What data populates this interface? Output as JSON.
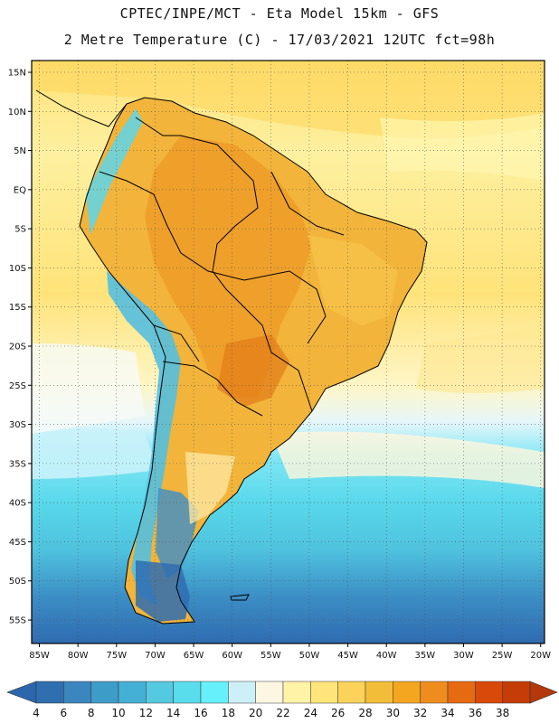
{
  "header": {
    "line1": "CPTEC/INPE/MCT -  Eta Model 15km - GFS",
    "line2": "2 Metre Temperature (C) - 17/03/2021 12UTC fct=98h"
  },
  "map": {
    "lat_labels": [
      "15N",
      "10N",
      "5N",
      "EQ",
      "5S",
      "10S",
      "15S",
      "20S",
      "25S",
      "30S",
      "35S",
      "40S",
      "45S",
      "50S",
      "55S"
    ],
    "lon_labels": [
      "85W",
      "80W",
      "75W",
      "70W",
      "65W",
      "60W",
      "55W",
      "50W",
      "45W",
      "40W",
      "35W",
      "30W",
      "25W",
      "20W"
    ],
    "lon_range": [
      -86,
      -19.5
    ],
    "lat_range": [
      -58,
      16.5
    ]
  },
  "colorbar": {
    "labels": [
      "4",
      "6",
      "8",
      "10",
      "12",
      "14",
      "16",
      "18",
      "20",
      "22",
      "24",
      "26",
      "28",
      "30",
      "32",
      "34",
      "36",
      "38"
    ],
    "colors": [
      "#2f6fb0",
      "#3b86bf",
      "#3e9cc9",
      "#45b0d6",
      "#55c9e0",
      "#59dcec",
      "#66f0fb",
      "#cdeff8",
      "#fdf7e2",
      "#fff3a8",
      "#ffe57a",
      "#fbd25a",
      "#f2bd38",
      "#f4a621",
      "#ee8d1d",
      "#e66a12",
      "#d84a0a",
      "#c63c06"
    ],
    "under_color": "#2c67ad",
    "over_color": "#b5380c"
  }
}
